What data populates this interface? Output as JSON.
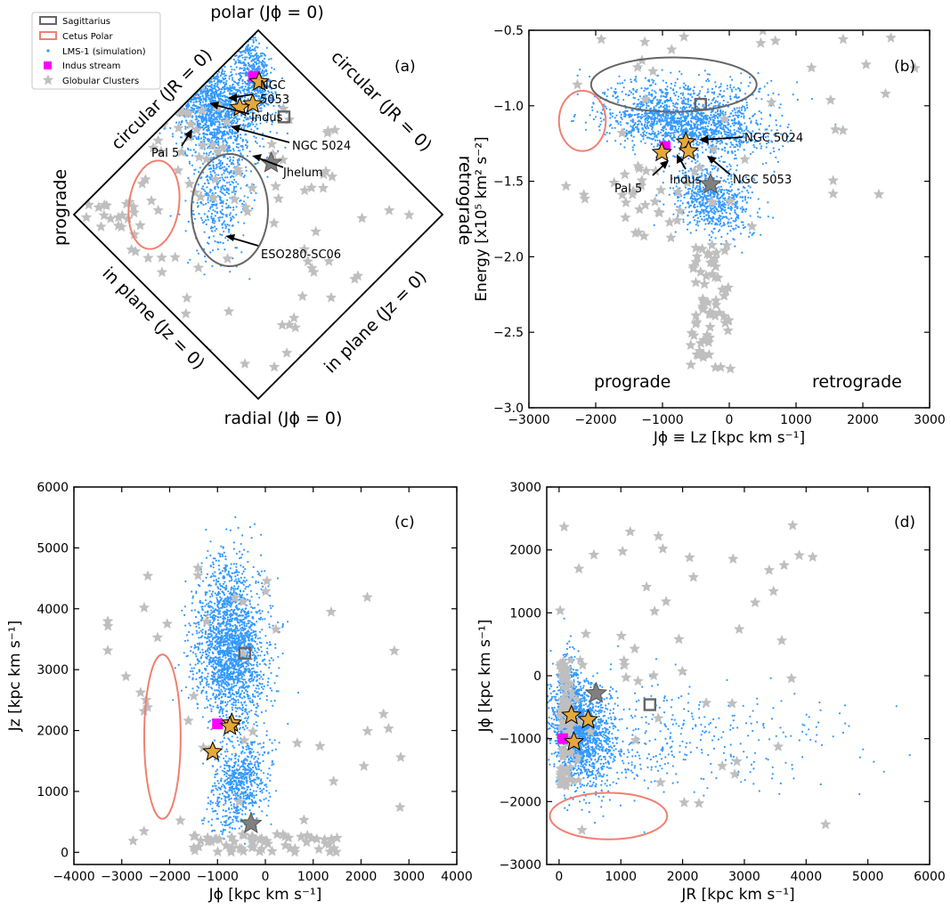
{
  "colors": {
    "lms": "#3399ff",
    "gc_fill": "#bfbfbf",
    "sgr": "#666666",
    "cetus": "#f08070",
    "indus": "#ff00ff",
    "star_gold": "#e5a83a",
    "sgr_gc": "#808080"
  },
  "legend": {
    "placement": "top-left",
    "items": [
      {
        "label": "Sagittarius",
        "marker": "open-square",
        "color": "#666666"
      },
      {
        "label": "Cetus Polar",
        "marker": "open-rectangle",
        "color": "#f08070"
      },
      {
        "label": "LMS-1 (simulation)",
        "marker": "dot",
        "color": "#3399ff"
      },
      {
        "label": "Indus stream",
        "marker": "filled-square",
        "color": "#ff00ff"
      },
      {
        "label": "Globular Clusters",
        "marker": "star",
        "color": "#bfbfbf"
      }
    ]
  },
  "chart_data": [
    {
      "panel": "(a)",
      "type": "scatter",
      "kind": "action-diamond",
      "edge_labels": {
        "top": "polar (Jϕ = 0)",
        "bottom": "radial (Jϕ = 0)",
        "left": "prograde",
        "right": "retrograde",
        "upper_left": "circular (JR = 0)",
        "upper_right": "circular (JR = 0)",
        "lower_left": "in plane (Jz = 0)",
        "lower_right": "in plane (Jz = 0)"
      },
      "annotations": [
        "NGC 5053",
        "Indus",
        "NGC 5024",
        "Pal 5",
        "Jhelum",
        "ESO280-SC06"
      ],
      "objects": {
        "indus": [
          -0.025,
          0.75
        ],
        "stars_gold": [
          [
            0.005,
            0.72
          ],
          [
            -0.03,
            0.6
          ],
          [
            -0.1,
            0.58
          ]
        ],
        "sgr": [
          0.14,
          0.53
        ],
        "sgr_gc": [
          0.07,
          0.28
        ]
      }
    },
    {
      "panel": "(b)",
      "type": "scatter",
      "xlabel": "Jϕ ≡ Lz [kpc km s⁻¹]",
      "ylabel": "Energy [x10⁵ km² s⁻²]",
      "xlim": [
        -3000,
        3000
      ],
      "ylim": [
        -3.0,
        -0.5
      ],
      "xticks": [
        -3000,
        -2000,
        -1000,
        0,
        1000,
        2000,
        3000
      ],
      "yticks": [
        -3.0,
        -2.5,
        -2.0,
        -1.5,
        -1.0,
        -0.5
      ],
      "text_labels": [
        "prograde",
        "retrograde"
      ],
      "annotations": [
        "NGC 5024",
        "NGC 5053",
        "Indus",
        "Pal 5"
      ],
      "objects": {
        "indus": [
          -960,
          -1.27
        ],
        "stars_gold": [
          [
            -1010,
            -1.31
          ],
          [
            -650,
            -1.24
          ],
          [
            -610,
            -1.3
          ]
        ],
        "sgr": [
          -430,
          -0.99
        ],
        "sgr_gc": [
          -280,
          -1.52
        ]
      },
      "ellipses": [
        {
          "name": "Sagittarius",
          "cx": -830,
          "cy": -0.86,
          "rx": 1240,
          "ry": 0.18
        },
        {
          "name": "Cetus Polar",
          "cx": -2200,
          "cy": -1.1,
          "rx": 350,
          "ry": 0.2
        }
      ]
    },
    {
      "panel": "(c)",
      "type": "scatter",
      "xlabel": "Jϕ [kpc km s⁻¹]",
      "ylabel": "Jz [kpc km s⁻¹]",
      "xlim": [
        -4000,
        4000
      ],
      "ylim": [
        -200,
        6000
      ],
      "xticks": [
        -4000,
        -3000,
        -2000,
        -1000,
        0,
        1000,
        2000,
        3000,
        4000
      ],
      "yticks": [
        0,
        1000,
        2000,
        3000,
        4000,
        5000,
        6000
      ],
      "objects": {
        "indus": [
          -1000,
          2110
        ],
        "stars_gold": [
          [
            -700,
            2120
          ],
          [
            -740,
            2070
          ],
          [
            -1100,
            1650
          ]
        ],
        "sgr": [
          -430,
          3270
        ],
        "sgr_gc": [
          -300,
          470
        ]
      },
      "ellipses": [
        {
          "name": "Cetus Polar",
          "cx": -2150,
          "cy": 1900,
          "rx": 380,
          "ry": 1350
        }
      ]
    },
    {
      "panel": "(d)",
      "type": "scatter",
      "xlabel": "JR [kpc km s⁻¹]",
      "ylabel": "Jϕ [kpc km s⁻¹]",
      "xlim": [
        -200,
        6000
      ],
      "ylim": [
        -3000,
        3000
      ],
      "xticks": [
        0,
        1000,
        2000,
        3000,
        4000,
        5000,
        6000
      ],
      "yticks": [
        -3000,
        -2000,
        -1000,
        0,
        1000,
        2000,
        3000
      ],
      "objects": {
        "indus": [
          60,
          -1000
        ],
        "stars_gold": [
          [
            200,
            -630
          ],
          [
            470,
            -700
          ],
          [
            240,
            -1050
          ]
        ],
        "sgr": [
          1470,
          -460
        ],
        "sgr_gc": [
          600,
          -280
        ]
      },
      "ellipses": [
        {
          "name": "Cetus Polar",
          "cx": 800,
          "cy": -2230,
          "rx": 950,
          "ry": 370
        }
      ]
    }
  ]
}
